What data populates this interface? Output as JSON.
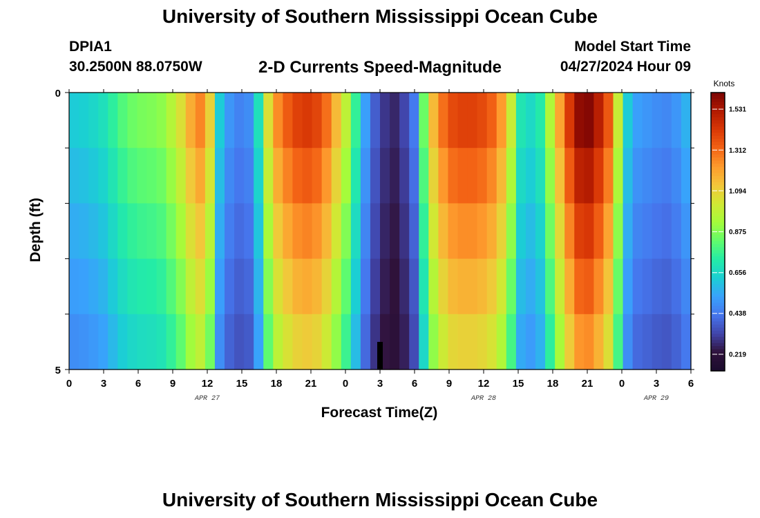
{
  "page": {
    "title": "University of Southern Mississippi Ocean Cube",
    "bottom_title": "University of Southern Mississippi Ocean Cube",
    "station_id": "DPIA1",
    "coordinates": "30.2500N  88.0750W",
    "plot_title": "2-D Currents Speed-Magnitude",
    "model_start_label": "Model Start Time",
    "model_start_value": "04/27/2024 Hour 09"
  },
  "chart_data": {
    "type": "heatmap",
    "title": "2-D Currents Speed-Magnitude",
    "xlabel": "Forecast Time(Z)",
    "ylabel": "Depth (ft)",
    "x_tick_labels": [
      "0",
      "3",
      "6",
      "9",
      "12",
      "15",
      "18",
      "21",
      "0",
      "3",
      "6",
      "9",
      "12",
      "15",
      "18",
      "21",
      "0",
      "3",
      "6"
    ],
    "x_hours_range": [
      0,
      54
    ],
    "date_labels": [
      {
        "label": "APR 27",
        "hour": 12
      },
      {
        "label": "APR 28",
        "hour": 36
      },
      {
        "label": "APR 29",
        "hour": 51
      }
    ],
    "y_tick_labels": [
      "0",
      "5"
    ],
    "ylim": [
      0,
      5
    ],
    "depth_bands": 5,
    "colorbar": {
      "unit": "Knots",
      "tick_labels": [
        "1.531",
        "1.312",
        "1.094",
        "0.875",
        "0.656",
        "0.438",
        "0.219"
      ],
      "tick_values": [
        1.531,
        1.312,
        1.094,
        0.875,
        0.656,
        0.438,
        0.219
      ],
      "vmin": 0.13,
      "vmax": 1.62,
      "colors": [
        "#1a0b2e",
        "#30123b",
        "#4145ab",
        "#4675ed",
        "#39a2fc",
        "#1bcfd4",
        "#24eca6",
        "#61fc6c",
        "#a4fc3b",
        "#d1e834",
        "#f3c63a",
        "#fe9b2d",
        "#f36315",
        "#d93806",
        "#b11901",
        "#7a0403"
      ]
    },
    "speed_profile_knots": [
      0.62,
      0.63,
      0.65,
      0.68,
      0.74,
      0.8,
      0.84,
      0.86,
      0.87,
      0.89,
      0.96,
      1.05,
      1.18,
      1.26,
      1.09,
      0.62,
      0.5,
      0.46,
      0.48,
      0.68,
      1.05,
      1.25,
      1.34,
      1.4,
      1.42,
      1.39,
      1.3,
      1.15,
      0.98,
      0.75,
      0.52,
      0.38,
      0.3,
      0.27,
      0.33,
      0.44,
      0.84,
      1.15,
      1.3,
      1.38,
      1.4,
      1.4,
      1.38,
      1.33,
      1.22,
      1.0,
      0.7,
      0.66,
      0.72,
      0.95,
      1.2,
      1.42,
      1.58,
      1.6,
      1.5,
      1.35,
      1.0,
      0.62,
      0.52,
      0.5,
      0.48,
      0.47,
      0.5,
      0.56
    ]
  }
}
